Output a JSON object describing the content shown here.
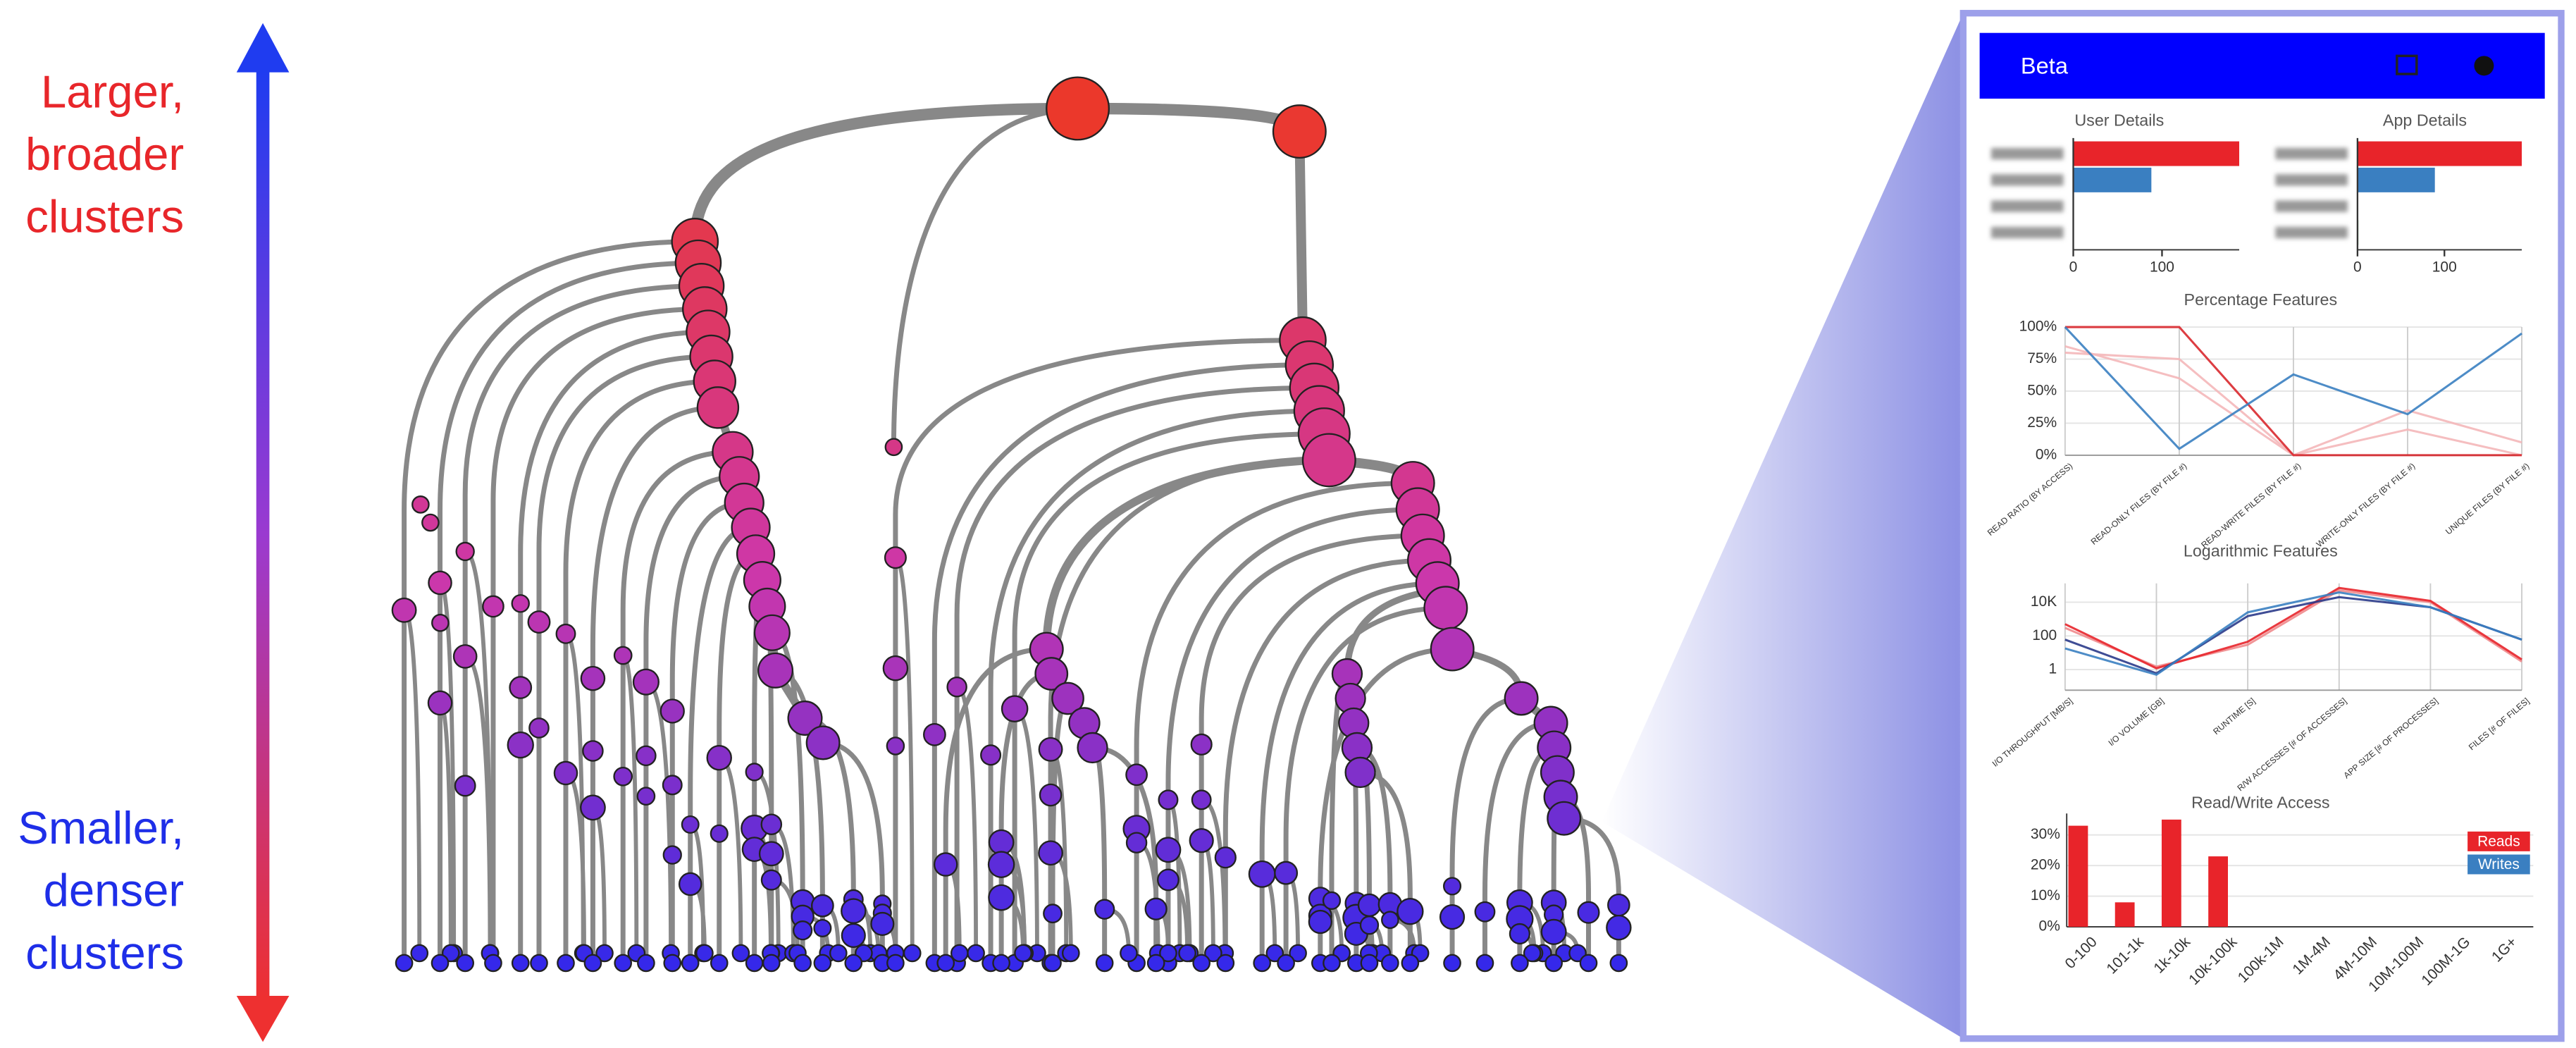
{
  "annotations": {
    "top": [
      "Larger,",
      "broader",
      "clusters"
    ],
    "bottom": [
      "Smaller,",
      "denser",
      "clusters"
    ]
  },
  "panel": {
    "title": "Beta"
  },
  "chart_data": [
    {
      "type": "hbar",
      "title": "User Details",
      "categories": [
        null,
        null,
        null,
        null
      ],
      "values": [
        187,
        88,
        0,
        0
      ],
      "colors": [
        "#e8242a",
        "#3a7fc1",
        "#3a7fc1",
        "#3a7fc1"
      ],
      "xlim": [
        0,
        187
      ],
      "xticks": [
        0,
        100
      ]
    },
    {
      "type": "hbar",
      "title": "App Details",
      "categories": [
        null,
        null,
        null,
        null
      ],
      "values": [
        189,
        89,
        0,
        1
      ],
      "colors": [
        "#e8242a",
        "#3a7fc1",
        "#3a7fc1",
        "#2ca02c"
      ],
      "xlim": [
        0,
        189
      ],
      "xticks": [
        0,
        100
      ]
    },
    {
      "type": "parallel",
      "title": "Percentage Features",
      "categories": [
        "READ RATIO (BY ACCESS)",
        "READ-ONLY FILES (BY FILE #)",
        "READ-WRITE FILES (BY FILE #)",
        "WRITE-ONLY FILES (BY FILE #)",
        "UNIQUE FILES (BY FILE #)"
      ],
      "series": [
        {
          "color": "#f4b7b9",
          "values": [
            85,
            60,
            0,
            20,
            0
          ]
        },
        {
          "color": "#f4b7b9",
          "values": [
            80,
            75,
            0,
            35,
            10
          ]
        },
        {
          "color": "#d9282e",
          "values": [
            100,
            100,
            0,
            0,
            0
          ]
        },
        {
          "color": "#3a7fc1",
          "values": [
            100,
            5,
            63,
            32,
            95
          ]
        }
      ],
      "ylim": [
        0,
        100
      ],
      "yticks": [
        {
          "value": 0,
          "label": "0%"
        },
        {
          "value": 25,
          "label": "25%"
        },
        {
          "value": 50,
          "label": "50%"
        },
        {
          "value": 75,
          "label": "75%"
        },
        {
          "value": 100,
          "label": "100%"
        }
      ],
      "grid": true
    },
    {
      "type": "parallel",
      "title": "Logarithmic Features",
      "log": true,
      "categories": [
        "I/O THROUGHPUT [MB/S]",
        "I/O VOLUME [GB]",
        "RUNTIME [S]",
        "R/W ACCESSES [# OF ACCESSES]",
        "APP SIZE [# OF PROCESSES]",
        "FILES [# OF FILES]"
      ],
      "series": [
        {
          "color": "#f08a8c",
          "values": [
            300,
            1.5,
            30,
            50000,
            10000,
            3
          ]
        },
        {
          "color": "#e8242a",
          "values": [
            500,
            1.2,
            45,
            70000,
            12000,
            4
          ]
        },
        {
          "color": "#2a3a8a",
          "values": [
            60,
            0.6,
            1500,
            20000,
            5000,
            60
          ]
        },
        {
          "color": "#3a7fc1",
          "values": [
            18,
            0.5,
            2500,
            38000,
            5000,
            60
          ]
        }
      ],
      "ylim": [
        0.06,
        130000
      ],
      "yticks": [
        1,
        100,
        {
          "value": 10000,
          "label": "10K"
        }
      ],
      "grid": true
    },
    {
      "type": "bar",
      "title": "Read/Write Access",
      "categories": [
        "0-100",
        "101-1k",
        "1k-10k",
        "10k-100k",
        "100k-1M",
        "1M-4M",
        "4M-10M",
        "10M-100M",
        "100M-1G",
        "1G+"
      ],
      "series": [
        {
          "name": "Reads",
          "color": "#e8242a",
          "values": [
            33,
            8,
            35,
            23,
            0,
            0,
            0,
            0,
            0,
            0
          ]
        },
        {
          "name": "Writes",
          "color": "#3a7fc1",
          "values": [
            0,
            0,
            0,
            0,
            0,
            0,
            0,
            0,
            0,
            0
          ]
        }
      ],
      "ylim": [
        0,
        37
      ],
      "yticks": [
        {
          "value": 0,
          "label": "0%"
        },
        {
          "value": 10,
          "label": "10%"
        },
        {
          "value": 20,
          "label": "20%"
        },
        {
          "value": 30,
          "label": "30%"
        }
      ],
      "grid": true,
      "legend": "top-right"
    }
  ]
}
